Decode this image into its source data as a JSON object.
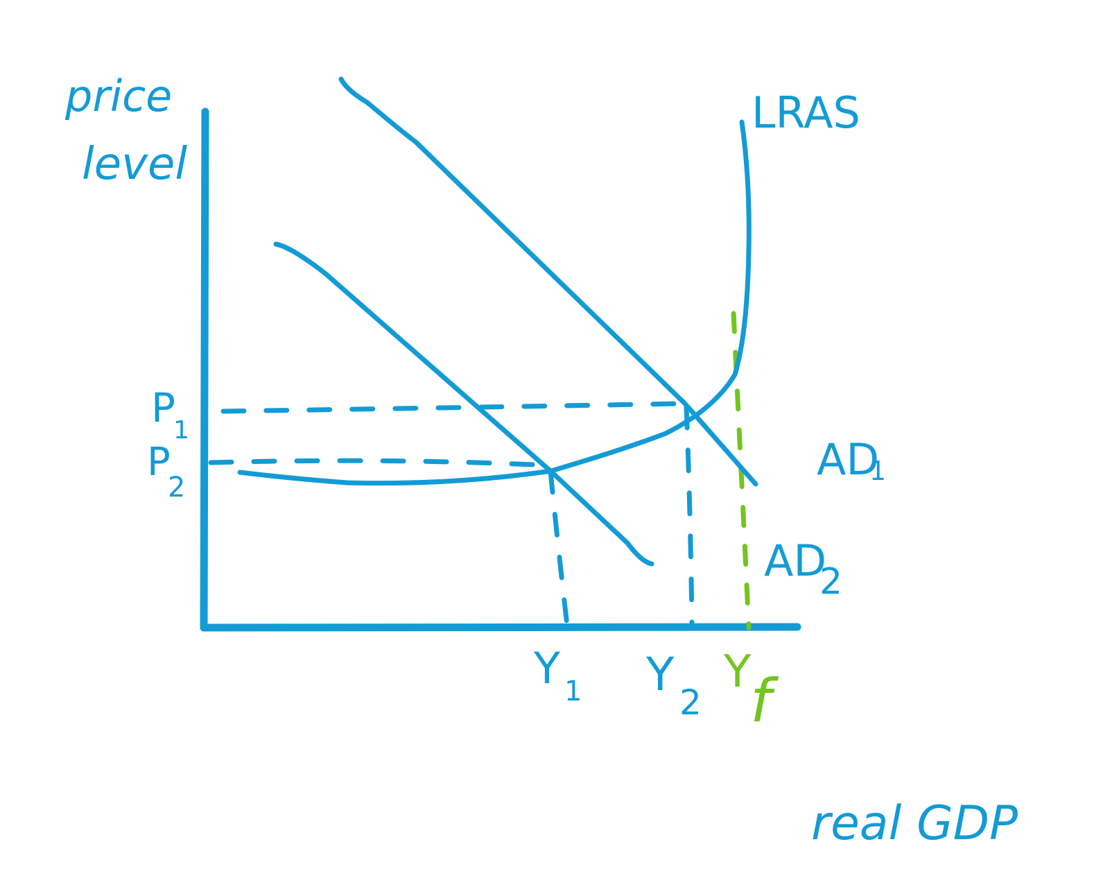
{
  "colors": {
    "primary": "#139bd6",
    "full_employment": "#73c51e",
    "background": "#ffffff"
  },
  "axes": {
    "y_label_line1": "price",
    "y_label_line2": "level",
    "x_label": "real GDP"
  },
  "curves": {
    "lras": "LRAS",
    "ad1": "AD",
    "ad1_sub": "1",
    "ad2": "AD",
    "ad2_sub": "2"
  },
  "price_levels": [
    {
      "main": "P",
      "sub": "1"
    },
    {
      "main": "P",
      "sub": "2"
    }
  ],
  "outputs": [
    {
      "main": "Y",
      "sub": "1"
    },
    {
      "main": "Y",
      "sub": "2"
    },
    {
      "main": "Y",
      "sub": "f"
    }
  ]
}
